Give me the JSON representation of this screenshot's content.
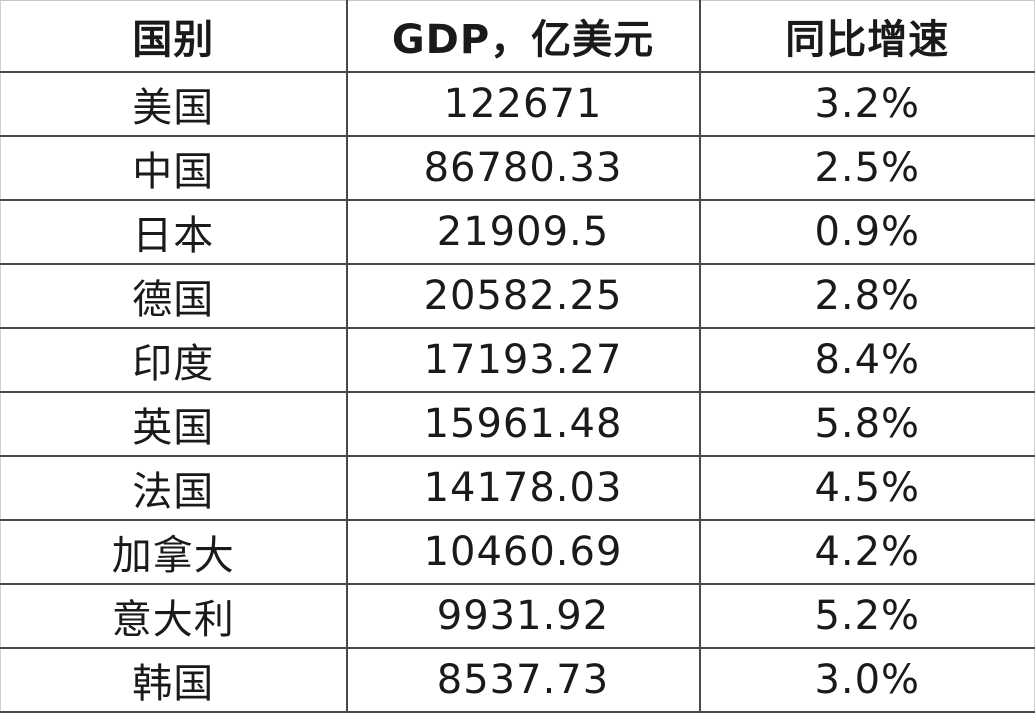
{
  "chart_data": {
    "type": "table",
    "columns": [
      "国别",
      "GDP，亿美元",
      "同比增速"
    ],
    "rows": [
      [
        "美国",
        "122671",
        "3.2%"
      ],
      [
        "中国",
        "86780.33",
        "2.5%"
      ],
      [
        "日本",
        "21909.5",
        "0.9%"
      ],
      [
        "德国",
        "20582.25",
        "2.8%"
      ],
      [
        "印度",
        "17193.27",
        "8.4%"
      ],
      [
        "英国",
        "15961.48",
        "5.8%"
      ],
      [
        "法国",
        "14178.03",
        "4.5%"
      ],
      [
        "加拿大",
        "10460.69",
        "4.2%"
      ],
      [
        "意大利",
        "9931.92",
        "5.2%"
      ],
      [
        "韩国",
        "8537.73",
        "3.0%"
      ]
    ]
  }
}
